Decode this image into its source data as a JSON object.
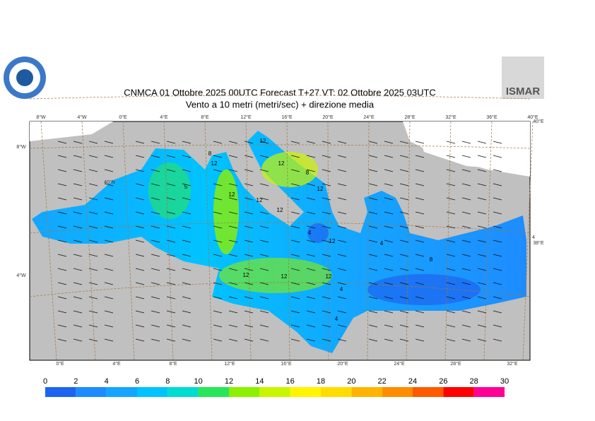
{
  "header": {
    "title": "CNMCA 01  Ottobre  2025 00UTC Forecast T+27 VT: 02  Ottobre  2025 03UTC",
    "subtitle": "Vento a 10 metri (metri/sec) + direzione media",
    "logo_text": "ISMAR"
  },
  "map": {
    "top_labels": [
      "8°W",
      "4°W",
      "0°E",
      "4°E",
      "8°E",
      "12°E",
      "16°E",
      "20°E",
      "24°E",
      "28°E",
      "32°E",
      "36°E",
      "40°E"
    ],
    "bottom_labels": [
      "0°E",
      "4°E",
      "8°E",
      "12°E",
      "16°E",
      "20°E",
      "24°E",
      "28°E",
      "32°E"
    ],
    "left_labels": [
      "8°W",
      "40°N",
      "4°W"
    ],
    "right_labels": [
      "40°E",
      "38°E",
      "4"
    ],
    "contour_labels": [
      "8",
      "12",
      "5",
      "12",
      "12",
      "12",
      "12",
      "12",
      "8",
      "12",
      "4",
      "12",
      "12",
      "12",
      "12",
      "4",
      "8",
      "4",
      "4"
    ]
  },
  "legend": {
    "ticks": [
      0,
      2,
      4,
      6,
      8,
      10,
      12,
      14,
      16,
      18,
      20,
      22,
      24,
      26,
      28,
      30
    ],
    "colors": [
      "#1e64f0",
      "#1e8cff",
      "#14a5ff",
      "#00c3ff",
      "#00dcd2",
      "#28e65a",
      "#8cf000",
      "#c8f500",
      "#fff500",
      "#ffdc00",
      "#ffb400",
      "#ff8c00",
      "#ff5a00",
      "#ff0000",
      "#ff0096"
    ]
  }
}
